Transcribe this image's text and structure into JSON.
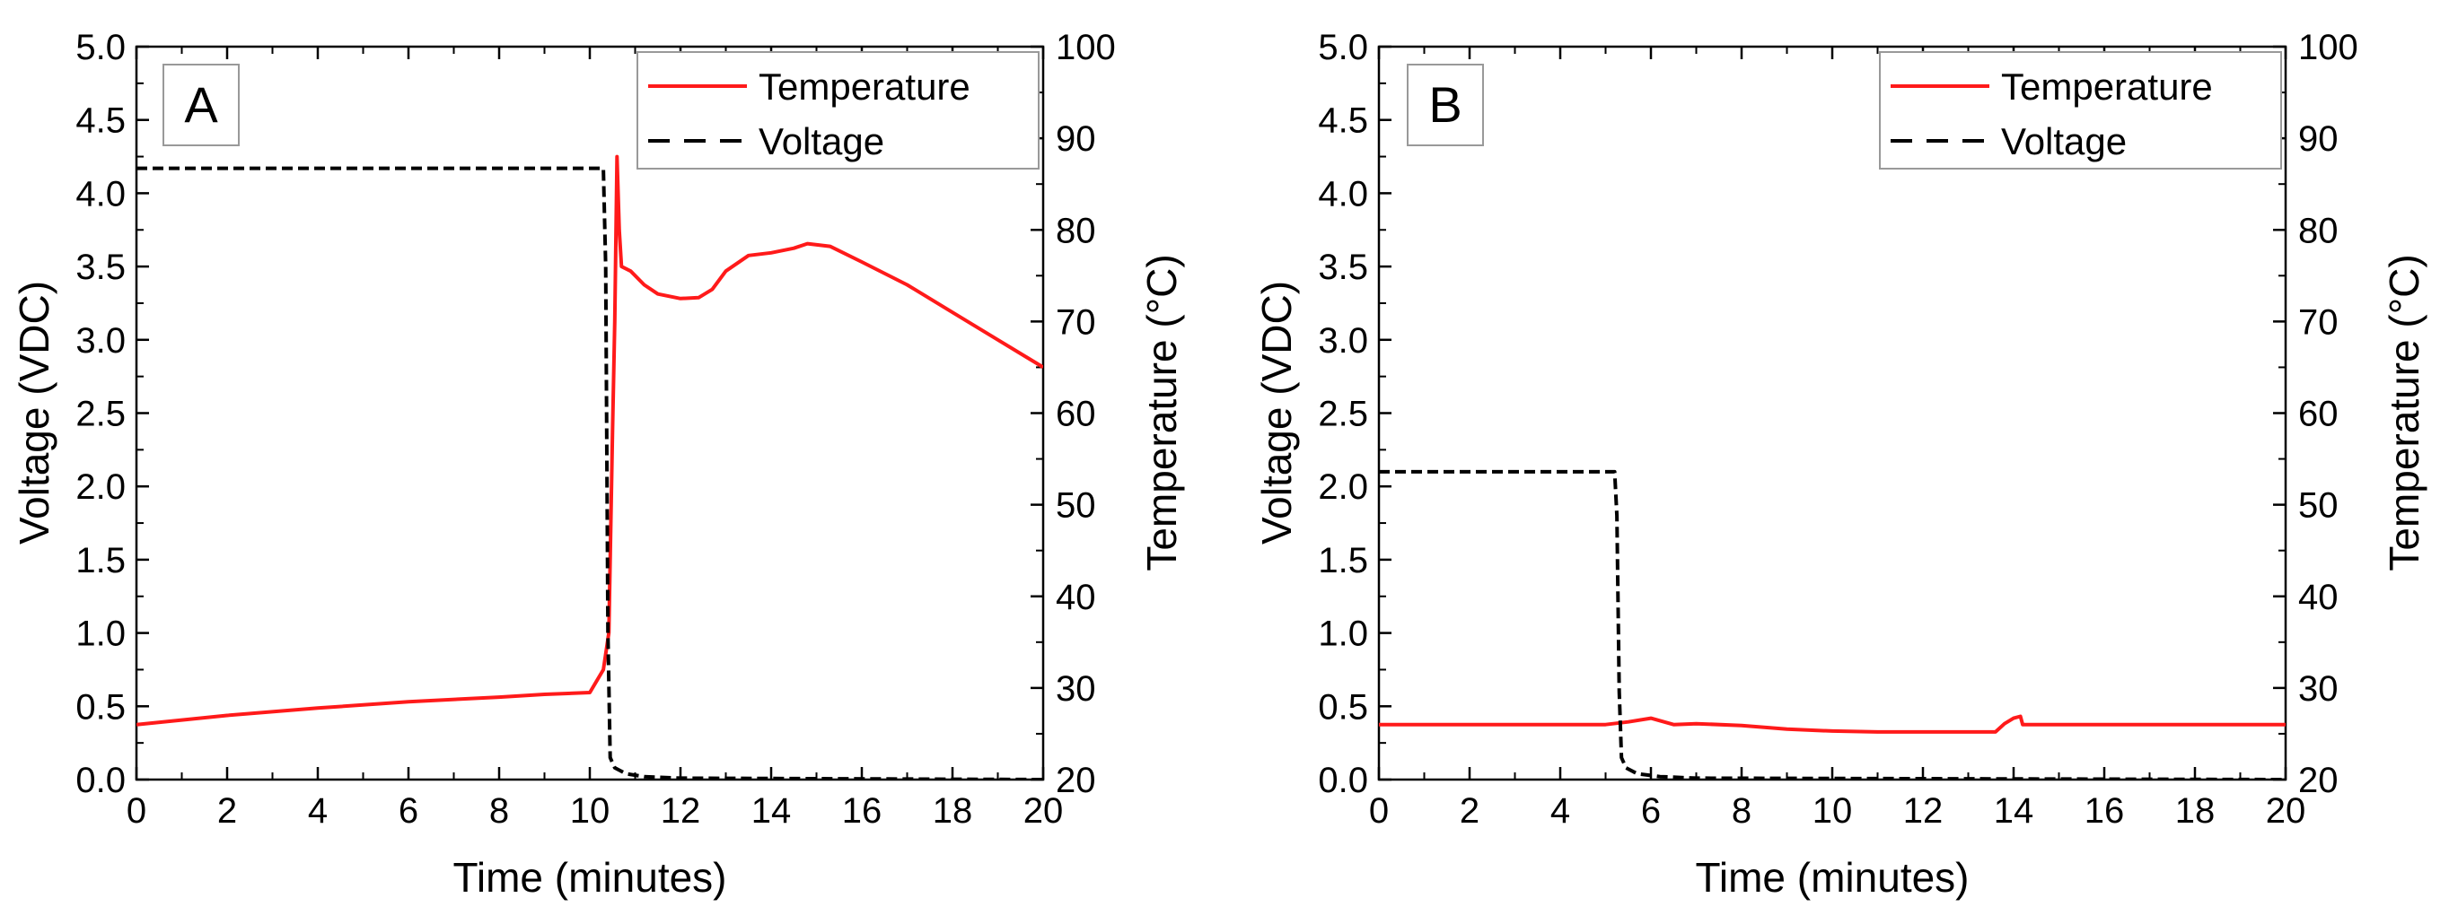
{
  "colors": {
    "temperature": "#ff1a1a",
    "voltage": "#000000",
    "axis": "#000000",
    "legend_border": "#999999",
    "label_box_border": "#999999"
  },
  "chart_data": [
    {
      "type": "line",
      "panel_label": "A",
      "xlabel": "Time (minutes)",
      "ylabel": "Voltage (VDC)",
      "y2label": "Temperature (°C)",
      "xlim": [
        0,
        20
      ],
      "ylim": [
        0,
        5
      ],
      "y2lim": [
        20,
        100
      ],
      "xticks": [
        "0",
        "2",
        "4",
        "6",
        "8",
        "10",
        "12",
        "14",
        "16",
        "18",
        "20"
      ],
      "yticks": [
        "0.0",
        "0.5",
        "1.0",
        "1.5",
        "2.0",
        "2.5",
        "3.0",
        "3.5",
        "4.0",
        "4.5",
        "5.0"
      ],
      "y2ticks": [
        "20",
        "30",
        "40",
        "50",
        "60",
        "70",
        "80",
        "90",
        "100"
      ],
      "legend": {
        "position": "top-right",
        "entries": [
          "Temperature",
          "Voltage"
        ]
      },
      "series": [
        {
          "name": "Temperature",
          "axis": "right",
          "style": "solid",
          "x": [
            0,
            2,
            4,
            6,
            8,
            9,
            10,
            10.3,
            10.42,
            10.5,
            10.55,
            10.6,
            10.65,
            10.7,
            10.9,
            11.2,
            11.5,
            12,
            12.4,
            12.7,
            13,
            13.5,
            14,
            14.5,
            14.8,
            15.3,
            16,
            17,
            18,
            19,
            20
          ],
          "y": [
            26,
            27,
            27.8,
            28.5,
            29,
            29.3,
            29.5,
            32,
            36,
            58,
            70,
            88,
            80,
            76,
            75.5,
            74,
            73,
            72.5,
            72.6,
            73.5,
            75.5,
            77.2,
            77.5,
            78,
            78.5,
            78.2,
            76.5,
            74,
            71,
            68,
            65
          ]
        },
        {
          "name": "Voltage",
          "axis": "left",
          "style": "dashed",
          "x": [
            0,
            10.3,
            10.35,
            10.4,
            10.45,
            10.55,
            10.8,
            11.2,
            12,
            20
          ],
          "y": [
            4.17,
            4.17,
            3.5,
            1.0,
            0.15,
            0.08,
            0.04,
            0.02,
            0.01,
            0.0
          ]
        }
      ]
    },
    {
      "type": "line",
      "panel_label": "B",
      "xlabel": "Time (minutes)",
      "ylabel": "Voltage (VDC)",
      "y2label": "Temperature (°C)",
      "xlim": [
        0,
        20
      ],
      "ylim": [
        0,
        5
      ],
      "y2lim": [
        20,
        100
      ],
      "xticks": [
        "0",
        "2",
        "4",
        "6",
        "8",
        "10",
        "12",
        "14",
        "16",
        "18",
        "20"
      ],
      "yticks": [
        "0.0",
        "0.5",
        "1.0",
        "1.5",
        "2.0",
        "2.5",
        "3.0",
        "3.5",
        "4.0",
        "4.5",
        "5.0"
      ],
      "y2ticks": [
        "20",
        "30",
        "40",
        "50",
        "60",
        "70",
        "80",
        "90",
        "100"
      ],
      "legend": {
        "position": "top-right",
        "entries": [
          "Temperature",
          "Voltage"
        ]
      },
      "series": [
        {
          "name": "Temperature",
          "axis": "right",
          "style": "solid",
          "x": [
            0,
            5,
            5.5,
            6,
            6.5,
            7,
            8,
            9,
            10,
            11,
            12,
            13,
            13.6,
            13.8,
            14,
            14.15,
            14.2,
            14.4,
            16,
            18,
            20
          ],
          "y": [
            26,
            26,
            26.3,
            26.7,
            26,
            26.1,
            25.9,
            25.5,
            25.3,
            25.2,
            25.2,
            25.2,
            25.2,
            26.1,
            26.7,
            26.9,
            26,
            26,
            26,
            26,
            26
          ]
        },
        {
          "name": "Voltage",
          "axis": "left",
          "style": "dashed",
          "x": [
            0,
            5.2,
            5.25,
            5.3,
            5.35,
            5.45,
            5.7,
            6.2,
            7,
            20
          ],
          "y": [
            2.1,
            2.1,
            1.8,
            0.6,
            0.15,
            0.08,
            0.04,
            0.02,
            0.01,
            0.0
          ]
        }
      ]
    }
  ]
}
